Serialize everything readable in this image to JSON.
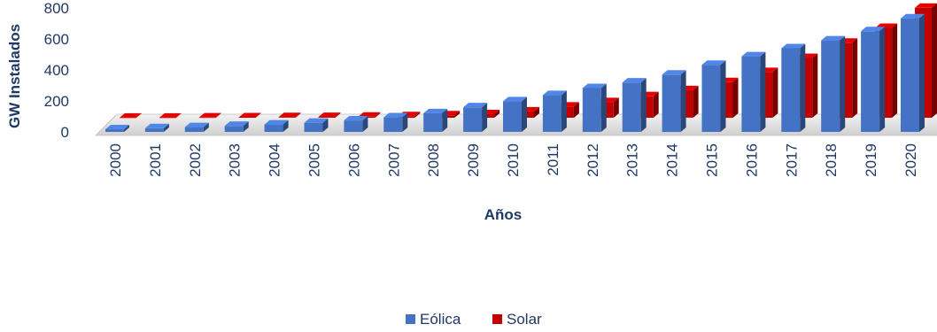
{
  "chart_data": {
    "type": "bar",
    "title": "",
    "xlabel": "Años",
    "ylabel": "GW Instalados",
    "ylim": [
      0,
      800
    ],
    "yticks": [
      "0",
      "200",
      "400",
      "600",
      "800"
    ],
    "categories": [
      "2000",
      "2001",
      "2002",
      "2003",
      "2004",
      "2005",
      "2006",
      "2007",
      "2008",
      "2009",
      "2010",
      "2011",
      "2012",
      "2013",
      "2014",
      "2015",
      "2016",
      "2017",
      "2018",
      "2019",
      "2020"
    ],
    "series": [
      {
        "name": "Eólica",
        "color": "#4472c4",
        "values": [
          17,
          24,
          31,
          39,
          48,
          59,
          74,
          94,
          121,
          159,
          198,
          238,
          283,
          319,
          370,
          433,
          488,
          540,
          591,
          650,
          733
        ]
      },
      {
        "name": "Solar",
        "color": "#c00000",
        "values": [
          1,
          1,
          2,
          3,
          4,
          5,
          7,
          10,
          16,
          23,
          41,
          72,
          101,
          139,
          178,
          230,
          295,
          386,
          484,
          580,
          710
        ]
      }
    ],
    "legend_position": "bottom",
    "grid": false
  }
}
